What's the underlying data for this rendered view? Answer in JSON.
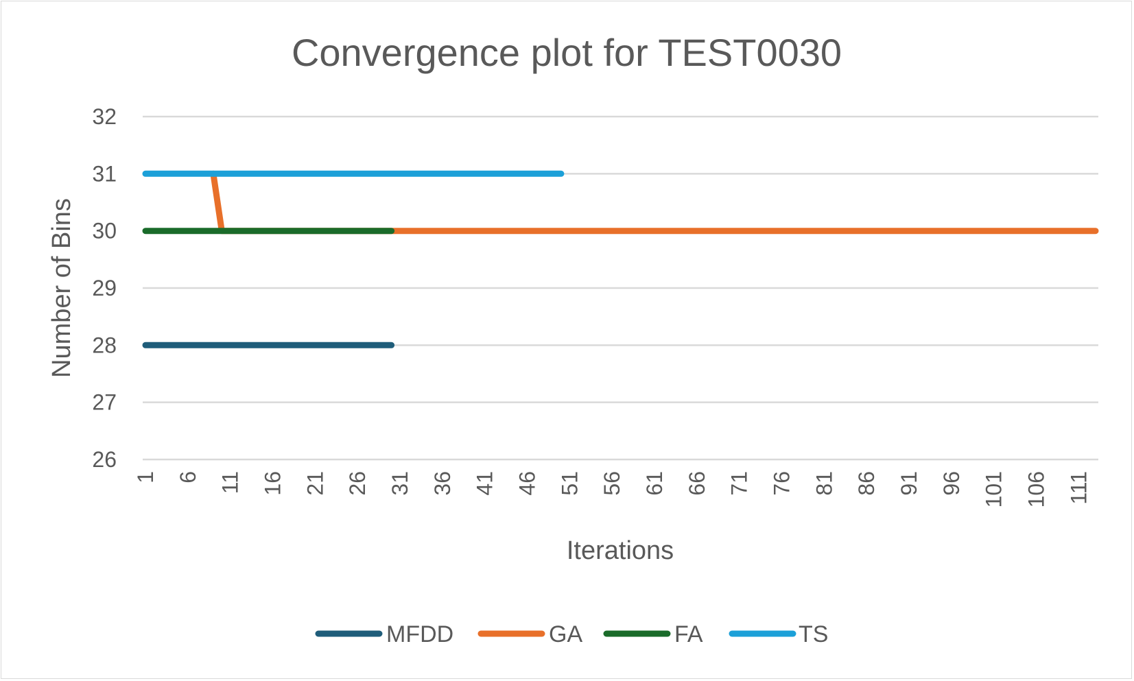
{
  "chart_data": {
    "type": "line",
    "title": "Convergence plot for TEST0030",
    "xlabel": "Iterations",
    "ylabel": "Number of Bins",
    "ylim": [
      26,
      32
    ],
    "yticks": [
      "26",
      "27",
      "28",
      "29",
      "30",
      "31",
      "32"
    ],
    "x_range": [
      1,
      113
    ],
    "xticks": [
      "1",
      "6",
      "11",
      "16",
      "21",
      "26",
      "31",
      "36",
      "41",
      "46",
      "51",
      "56",
      "61",
      "66",
      "71",
      "76",
      "81",
      "86",
      "91",
      "96",
      "101",
      "106",
      "111"
    ],
    "grid": true,
    "legend_position": "bottom",
    "series": [
      {
        "name": "MFDD",
        "color": "#1f5d7a",
        "points": [
          [
            1,
            28
          ],
          [
            30,
            28
          ]
        ]
      },
      {
        "name": "GA",
        "color": "#e8702a",
        "points": [
          [
            9,
            31
          ],
          [
            10,
            30
          ],
          [
            113,
            30
          ]
        ]
      },
      {
        "name": "FA",
        "color": "#1a6b2a",
        "points": [
          [
            1,
            30
          ],
          [
            30,
            30
          ]
        ]
      },
      {
        "name": "TS",
        "color": "#1ca0d8",
        "points": [
          [
            1,
            31
          ],
          [
            50,
            31
          ]
        ]
      }
    ],
    "draw_order": [
      "GA",
      "FA",
      "TS",
      "MFDD"
    ]
  }
}
